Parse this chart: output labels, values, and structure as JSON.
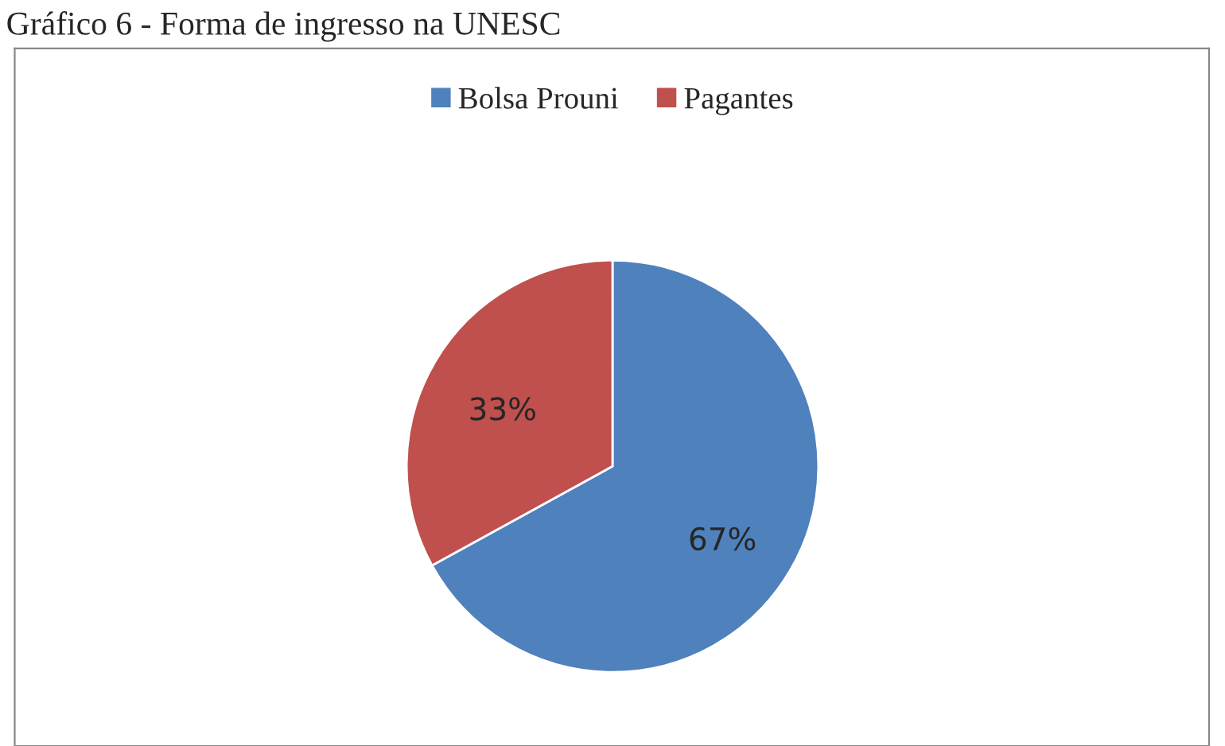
{
  "chart_data": {
    "type": "pie",
    "title": "Gráfico 6 - Forma de ingresso na UNESC",
    "categories": [
      "Bolsa Prouni",
      "Pagantes"
    ],
    "values": [
      67,
      33
    ],
    "colors": [
      "#4f81bd",
      "#c0504d"
    ],
    "value_labels": [
      "67%",
      "33%"
    ],
    "legend": "top"
  }
}
